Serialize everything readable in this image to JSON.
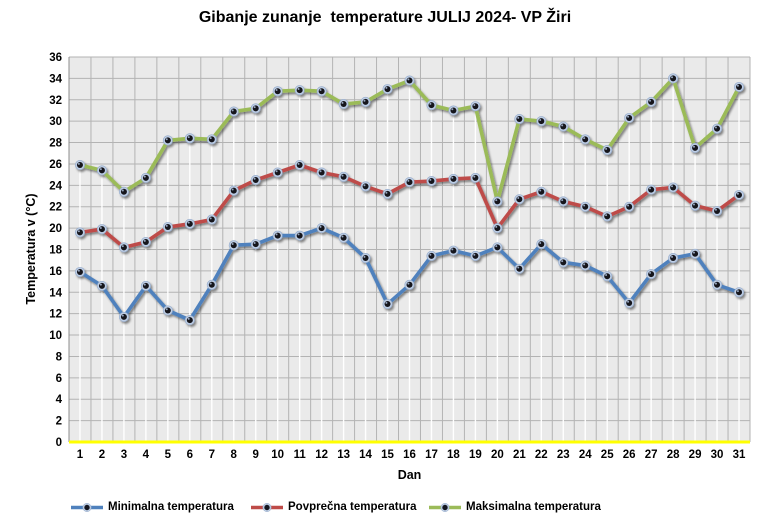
{
  "title": "Gibanje zunanje  temperature JULIJ 2024- VP Žiri",
  "chart_data": {
    "type": "line",
    "x": [
      1,
      2,
      3,
      4,
      5,
      6,
      7,
      8,
      9,
      10,
      11,
      12,
      13,
      14,
      15,
      16,
      17,
      18,
      19,
      20,
      21,
      22,
      23,
      24,
      25,
      26,
      27,
      28,
      29,
      30,
      31
    ],
    "xlabel": "Dan",
    "ylabel": "Temperatura v (°C)",
    "ylim": [
      0,
      36
    ],
    "ytick_step": 2,
    "grid": true,
    "legend_position": "bottom",
    "series": [
      {
        "name": "Minimalna temperatura",
        "color": "#4F81BD",
        "values": [
          15.9,
          14.6,
          11.7,
          14.6,
          12.3,
          11.4,
          14.7,
          18.4,
          18.5,
          19.3,
          19.3,
          20.0,
          19.1,
          17.2,
          12.9,
          14.7,
          17.4,
          17.9,
          17.4,
          18.2,
          16.2,
          18.5,
          16.8,
          16.5,
          15.5,
          13.0,
          15.7,
          17.2,
          17.6,
          14.7,
          14.0
        ]
      },
      {
        "name": "Povprečna temperatura",
        "color": "#BE4B48",
        "values": [
          19.6,
          19.9,
          18.2,
          18.7,
          20.1,
          20.4,
          20.8,
          23.5,
          24.5,
          25.2,
          25.9,
          25.2,
          24.8,
          23.9,
          23.2,
          24.3,
          24.4,
          24.6,
          24.7,
          20.0,
          22.7,
          23.4,
          22.5,
          22.0,
          21.1,
          22.0,
          23.6,
          23.8,
          22.1,
          21.6,
          23.1
        ]
      },
      {
        "name": "Maksimalna temperatura",
        "color": "#9BBB59",
        "values": [
          25.9,
          25.4,
          23.4,
          24.7,
          28.2,
          28.4,
          28.3,
          30.9,
          31.2,
          32.8,
          32.9,
          32.8,
          31.6,
          31.8,
          33.0,
          33.8,
          31.5,
          31.0,
          31.4,
          22.5,
          30.2,
          30.0,
          29.5,
          28.3,
          27.3,
          30.3,
          31.8,
          34.0,
          27.5,
          29.3,
          33.2
        ]
      }
    ],
    "style": {
      "plot_bg": "#EAEAEA",
      "grid_color": "#B3B3B3",
      "axis_line_color": "#8C8C8C",
      "zero_line_color": "#FFFF00",
      "drop_line_color": "#FFFFFF",
      "marker_halo": "#BFCFE6",
      "marker_core": "#14161F"
    }
  }
}
